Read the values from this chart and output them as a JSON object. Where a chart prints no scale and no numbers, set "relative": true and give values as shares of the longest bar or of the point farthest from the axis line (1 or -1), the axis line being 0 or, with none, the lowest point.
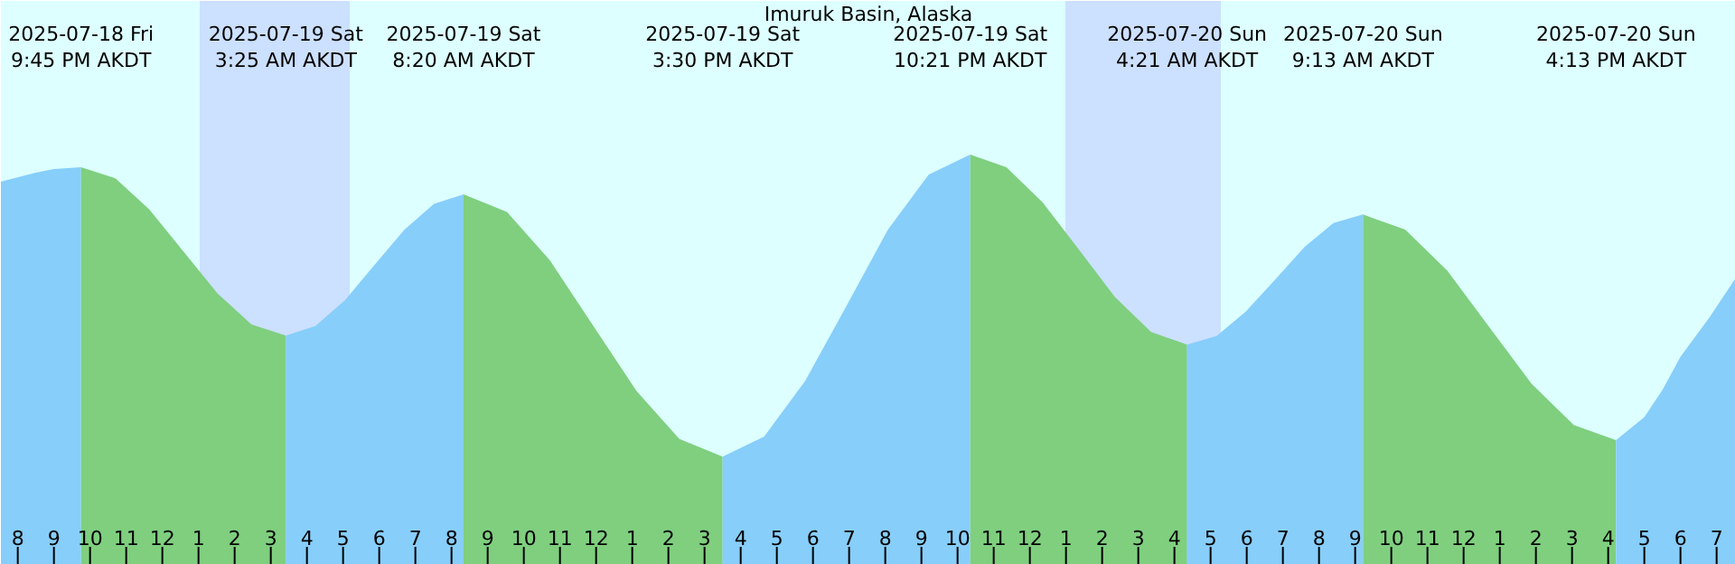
{
  "chart_data": {
    "type": "area",
    "title": "Imuruk Basin, Alaska",
    "relative": true,
    "xlim": [
      "2025-07-18T19:32",
      "2025-07-20T19:32"
    ],
    "xticks": [
      {
        "value": "2025-07-18T20:00",
        "label": "8"
      },
      {
        "value": "2025-07-18T21:00",
        "label": "9"
      },
      {
        "value": "2025-07-18T22:00",
        "label": "10"
      },
      {
        "value": "2025-07-18T23:00",
        "label": "11"
      },
      {
        "value": "2025-07-19T00:00",
        "label": "12"
      },
      {
        "value": "2025-07-19T01:00",
        "label": "1"
      },
      {
        "value": "2025-07-19T02:00",
        "label": "2"
      },
      {
        "value": "2025-07-19T03:00",
        "label": "3"
      },
      {
        "value": "2025-07-19T04:00",
        "label": "4"
      },
      {
        "value": "2025-07-19T05:00",
        "label": "5"
      },
      {
        "value": "2025-07-19T06:00",
        "label": "6"
      },
      {
        "value": "2025-07-19T07:00",
        "label": "7"
      },
      {
        "value": "2025-07-19T08:00",
        "label": "8"
      },
      {
        "value": "2025-07-19T09:00",
        "label": "9"
      },
      {
        "value": "2025-07-19T10:00",
        "label": "10"
      },
      {
        "value": "2025-07-19T11:00",
        "label": "11"
      },
      {
        "value": "2025-07-19T12:00",
        "label": "12"
      },
      {
        "value": "2025-07-19T13:00",
        "label": "1"
      },
      {
        "value": "2025-07-19T14:00",
        "label": "2"
      },
      {
        "value": "2025-07-19T15:00",
        "label": "3"
      },
      {
        "value": "2025-07-19T16:00",
        "label": "4"
      },
      {
        "value": "2025-07-19T17:00",
        "label": "5"
      },
      {
        "value": "2025-07-19T18:00",
        "label": "6"
      },
      {
        "value": "2025-07-19T19:00",
        "label": "7"
      },
      {
        "value": "2025-07-19T20:00",
        "label": "8"
      },
      {
        "value": "2025-07-19T21:00",
        "label": "9"
      },
      {
        "value": "2025-07-19T22:00",
        "label": "10"
      },
      {
        "value": "2025-07-19T23:00",
        "label": "11"
      },
      {
        "value": "2025-07-20T00:00",
        "label": "12"
      },
      {
        "value": "2025-07-20T01:00",
        "label": "1"
      },
      {
        "value": "2025-07-20T02:00",
        "label": "2"
      },
      {
        "value": "2025-07-20T03:00",
        "label": "3"
      },
      {
        "value": "2025-07-20T04:00",
        "label": "4"
      },
      {
        "value": "2025-07-20T05:00",
        "label": "5"
      },
      {
        "value": "2025-07-20T06:00",
        "label": "6"
      },
      {
        "value": "2025-07-20T07:00",
        "label": "7"
      },
      {
        "value": "2025-07-20T08:00",
        "label": "8"
      },
      {
        "value": "2025-07-20T09:00",
        "label": "9"
      },
      {
        "value": "2025-07-20T10:00",
        "label": "10"
      },
      {
        "value": "2025-07-20T11:00",
        "label": "11"
      },
      {
        "value": "2025-07-20T12:00",
        "label": "12"
      },
      {
        "value": "2025-07-20T13:00",
        "label": "1"
      },
      {
        "value": "2025-07-20T14:00",
        "label": "2"
      },
      {
        "value": "2025-07-20T15:00",
        "label": "3"
      },
      {
        "value": "2025-07-20T16:00",
        "label": "4"
      },
      {
        "value": "2025-07-20T17:00",
        "label": "5"
      },
      {
        "value": "2025-07-20T18:00",
        "label": "6"
      },
      {
        "value": "2025-07-20T19:00",
        "label": "7"
      }
    ],
    "series": [
      {
        "color": "#87cefa",
        "x": [
          "2025-07-18T19:32",
          "2025-07-18T20:30",
          "2025-07-18T21:00",
          "2025-07-18T21:45"
        ],
        "values": [
          0.934,
          0.956,
          0.965,
          0.969
        ]
      },
      {
        "color": "#7fcf7f",
        "x": [
          "2025-07-18T21:45",
          "2025-07-18T22:42",
          "2025-07-18T23:38",
          "2025-07-19T00:35",
          "2025-07-19T01:32",
          "2025-07-19T02:28",
          "2025-07-19T03:25"
        ],
        "values": [
          0.969,
          0.942,
          0.867,
          0.764,
          0.661,
          0.586,
          0.559
        ]
      },
      {
        "color": "#87cefa",
        "x": [
          "2025-07-19T03:25",
          "2025-07-19T04:14",
          "2025-07-19T05:03",
          "2025-07-19T05:52",
          "2025-07-19T06:42",
          "2025-07-19T07:31",
          "2025-07-19T08:20"
        ],
        "values": [
          0.559,
          0.582,
          0.645,
          0.731,
          0.817,
          0.88,
          0.903
        ]
      },
      {
        "color": "#7fcf7f",
        "x": [
          "2025-07-19T08:20",
          "2025-07-19T09:32",
          "2025-07-19T10:43",
          "2025-07-19T11:55",
          "2025-07-19T13:07",
          "2025-07-19T14:18",
          "2025-07-19T15:30"
        ],
        "values": [
          0.903,
          0.86,
          0.743,
          0.583,
          0.424,
          0.307,
          0.264
        ]
      },
      {
        "color": "#87cefa",
        "x": [
          "2025-07-19T15:30",
          "2025-07-19T16:39",
          "2025-07-19T17:47",
          "2025-07-19T18:56",
          "2025-07-19T20:04",
          "2025-07-19T21:12",
          "2025-07-19T22:21"
        ],
        "values": [
          0.264,
          0.313,
          0.448,
          0.632,
          0.816,
          0.951,
          1
        ]
      },
      {
        "color": "#7fcf7f",
        "x": [
          "2025-07-19T22:21",
          "2025-07-19T23:21",
          "2025-07-20T00:21",
          "2025-07-20T01:21",
          "2025-07-20T02:21",
          "2025-07-20T03:21",
          "2025-07-20T04:21"
        ],
        "values": [
          1,
          0.969,
          0.884,
          0.769,
          0.653,
          0.568,
          0.537
        ]
      },
      {
        "color": "#87cefa",
        "x": [
          "2025-07-20T04:21",
          "2025-07-20T05:10",
          "2025-07-20T05:58",
          "2025-07-20T06:47",
          "2025-07-20T07:36",
          "2025-07-20T08:24",
          "2025-07-20T09:13"
        ],
        "values": [
          0.537,
          0.558,
          0.617,
          0.695,
          0.775,
          0.833,
          0.854
        ]
      },
      {
        "color": "#7fcf7f",
        "x": [
          "2025-07-20T09:13",
          "2025-07-20T10:23",
          "2025-07-20T11:33",
          "2025-07-20T12:43",
          "2025-07-20T13:53",
          "2025-07-20T15:03",
          "2025-07-20T16:13"
        ],
        "values": [
          0.854,
          0.817,
          0.717,
          0.579,
          0.441,
          0.341,
          0.304
        ]
      },
      {
        "color": "#87cefa",
        "x": [
          "2025-07-20T16:13",
          "2025-07-20T17:00",
          "2025-07-20T17:30",
          "2025-07-20T18:00",
          "2025-07-20T18:48",
          "2025-07-20T19:32"
        ],
        "values": [
          0.304,
          0.36,
          0.426,
          0.507,
          0.603,
          0.7
        ]
      }
    ],
    "bands": [
      {
        "axis": "x",
        "from": "2025-07-19T01:02",
        "to": "2025-07-19T05:11",
        "color": "#cce0ff"
      },
      {
        "axis": "x",
        "from": "2025-07-20T00:59",
        "to": "2025-07-20T05:17",
        "color": "#cce0ff"
      }
    ],
    "annotations": [
      "2025-07-18 Fri\n9:45 PM AKDT",
      "2025-07-19 Sat\n3:25 AM AKDT",
      "2025-07-19 Sat\n8:20 AM AKDT",
      "2025-07-19 Sat\n3:30 PM AKDT",
      "2025-07-19 Sat\n10:21 PM AKDT",
      "2025-07-20 Sun\n4:21 AM AKDT",
      "2025-07-20 Sun\n9:13 AM AKDT",
      "2025-07-20 Sun\n4:13 PM AKDT"
    ],
    "grid": false
  }
}
